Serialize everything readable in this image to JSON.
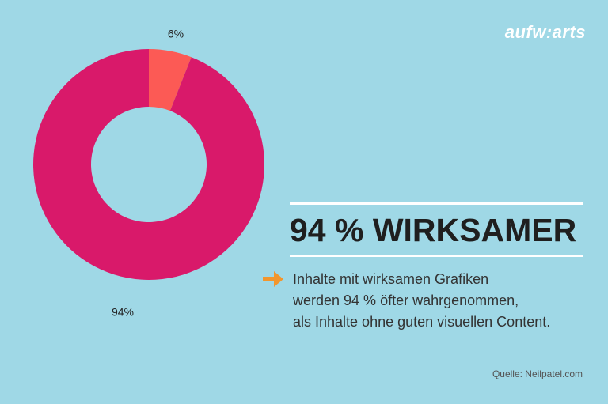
{
  "brand": {
    "logo_text": "aufw:arts"
  },
  "chart_data": {
    "type": "pie",
    "donut": true,
    "slices": [
      {
        "label": "6%",
        "value": 6,
        "color": "#fc5a55"
      },
      {
        "label": "94%",
        "value": 94,
        "color": "#d9196a"
      }
    ]
  },
  "panel": {
    "headline": "94 % WIRKSAMER",
    "lines": [
      "Inhalte mit wirksamen Grafiken",
      "werden 94 % öfter wahrgenommen,",
      "als Inhalte ohne guten visuellen Content."
    ],
    "arrow_color": "#f2962d",
    "rule_color": "#ffffff"
  },
  "source": "Quelle: Neilpatel.com"
}
